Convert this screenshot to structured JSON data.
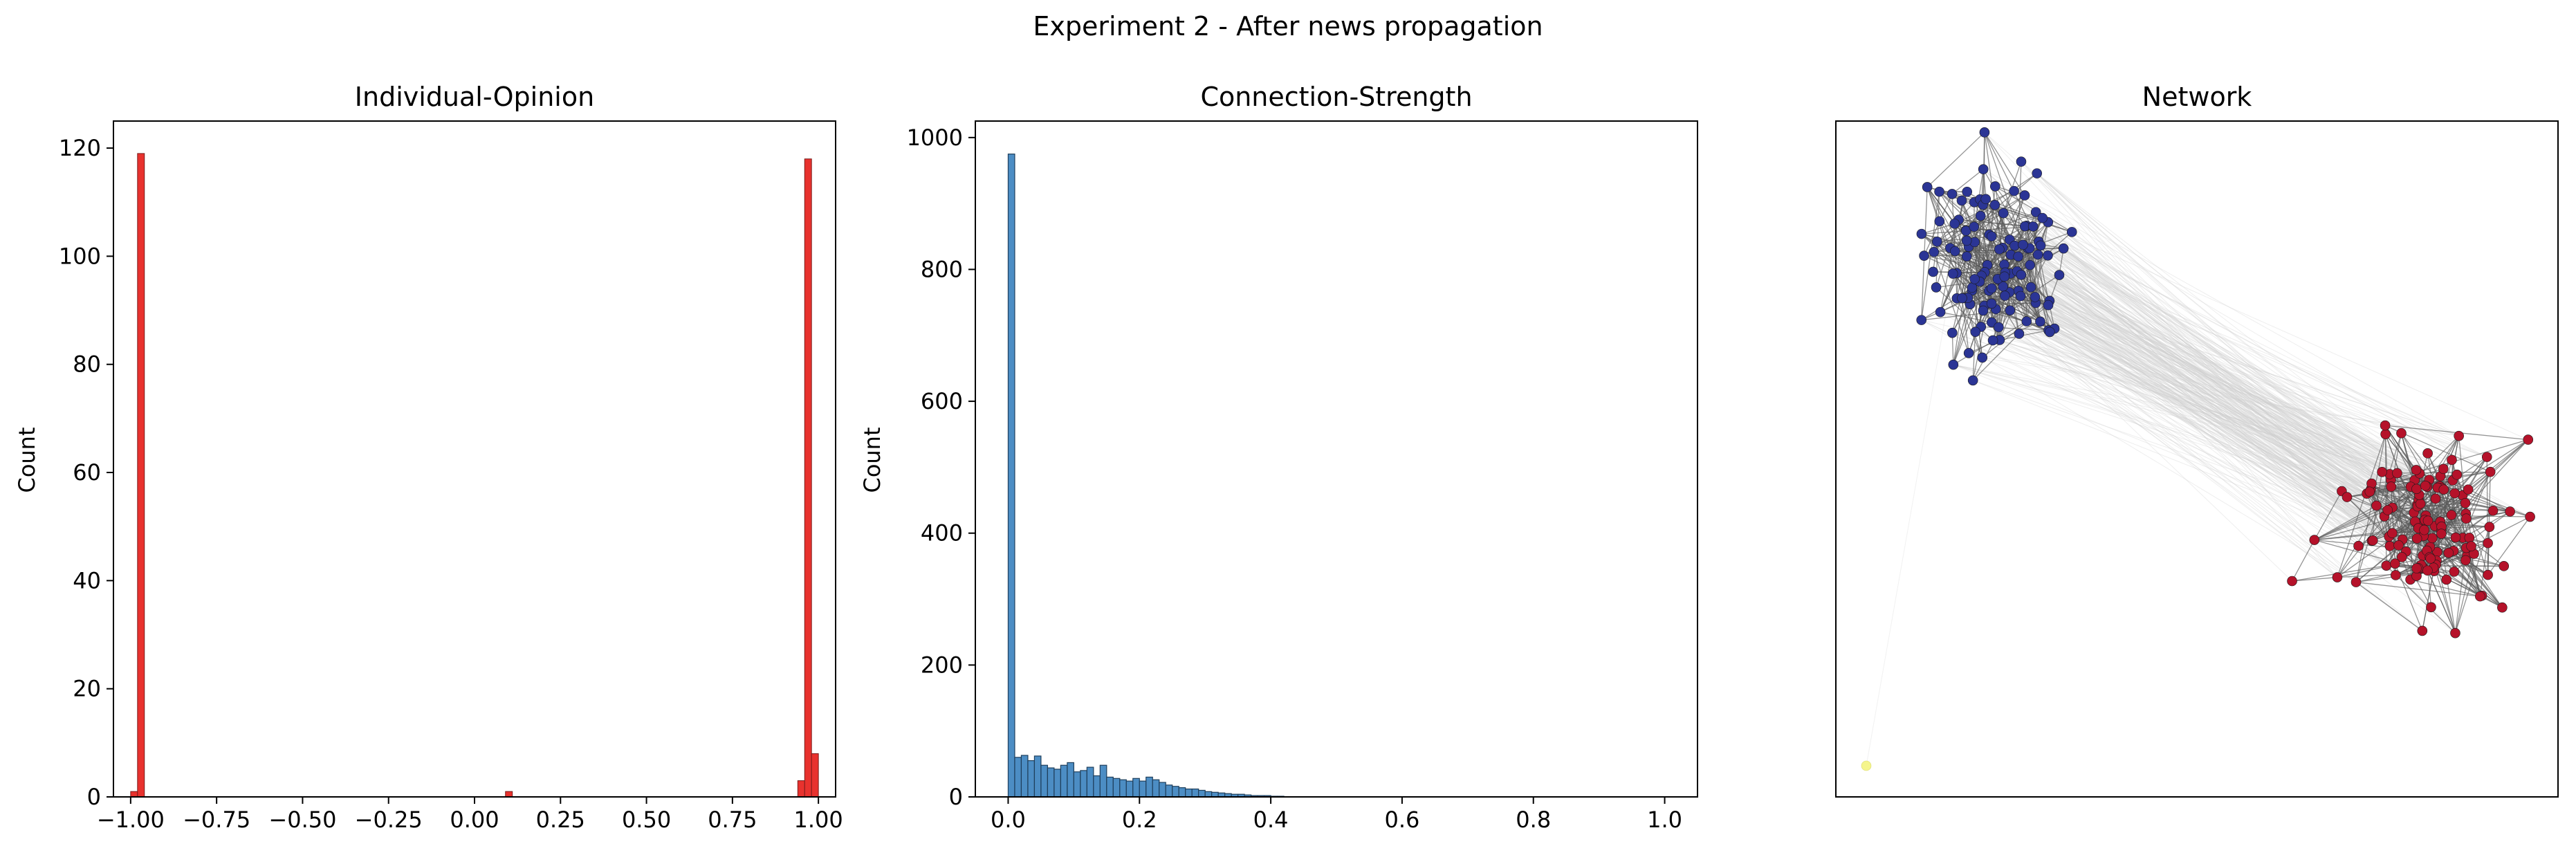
{
  "figure": {
    "title": "Experiment 2 - After news propagation"
  },
  "chart_data": [
    {
      "type": "bar",
      "title": "Individual-Opinion",
      "xlabel": "",
      "ylabel": "Count",
      "xlim": [
        -1.05,
        1.05
      ],
      "ylim": [
        0,
        125
      ],
      "xticks": [
        -1.0,
        -0.75,
        -0.5,
        -0.25,
        0.0,
        0.25,
        0.5,
        0.75,
        1.0
      ],
      "xtick_labels": [
        "−1.00",
        "−0.75",
        "−0.50",
        "−0.25",
        "0.00",
        "0.25",
        "0.50",
        "0.75",
        "1.00"
      ],
      "yticks": [
        0,
        20,
        40,
        60,
        80,
        100,
        120
      ],
      "bar_color": "#e8322e",
      "bin_width": 0.02,
      "bins": [
        {
          "x": -1.0,
          "count": 1
        },
        {
          "x": -0.98,
          "count": 119
        },
        {
          "x": 0.09,
          "count": 1
        },
        {
          "x": 0.94,
          "count": 3
        },
        {
          "x": 0.96,
          "count": 118
        },
        {
          "x": 0.98,
          "count": 8
        }
      ]
    },
    {
      "type": "bar",
      "title": "Connection-Strength",
      "xlabel": "",
      "ylabel": "Count",
      "xlim": [
        -0.05,
        1.05
      ],
      "ylim": [
        0,
        1025
      ],
      "xticks": [
        0.0,
        0.2,
        0.4,
        0.6,
        0.8,
        1.0
      ],
      "xtick_labels": [
        "0.0",
        "0.2",
        "0.4",
        "0.6",
        "0.8",
        "1.0"
      ],
      "yticks": [
        0,
        200,
        400,
        600,
        800,
        1000
      ],
      "bar_color": "#4c8dc4",
      "bin_start": 0.0,
      "bin_width": 0.01,
      "counts": [
        975,
        60,
        63,
        55,
        62,
        48,
        44,
        42,
        48,
        52,
        38,
        40,
        45,
        32,
        48,
        30,
        28,
        26,
        24,
        28,
        24,
        30,
        26,
        22,
        18,
        16,
        14,
        12,
        12,
        10,
        8,
        7,
        6,
        5,
        4,
        4,
        3,
        2,
        2,
        2,
        1,
        1
      ]
    },
    {
      "type": "network",
      "title": "Network",
      "clusters": [
        {
          "name": "blue",
          "color": "#2b3595",
          "node_count": 120
        },
        {
          "name": "red",
          "color": "#b5122a",
          "node_count": 130
        },
        {
          "name": "yellow",
          "color": "#f5f58c",
          "node_count": 1
        }
      ],
      "edge_color": "#5a5a5a",
      "cross_edge_color": "#cfcfcf"
    }
  ]
}
